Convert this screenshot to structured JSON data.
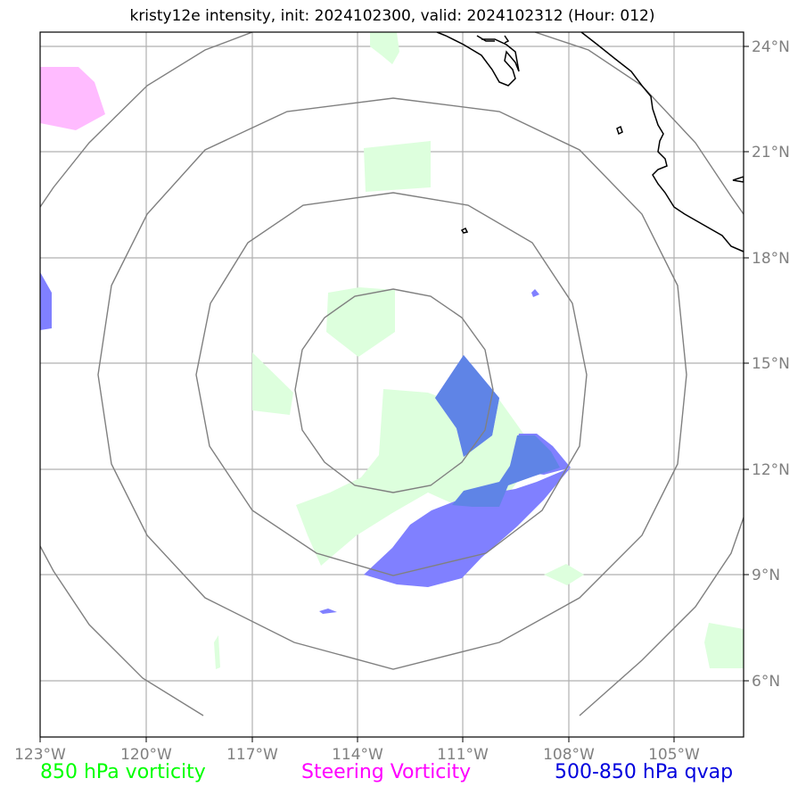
{
  "title": "kristy12e intensity, init: 2024102300, valid: 2024102312 (Hour: 012)",
  "axes": {
    "lon_ticks": [
      "123°W",
      "120°W",
      "117°W",
      "114°W",
      "111°W",
      "108°W",
      "105°W"
    ],
    "lat_ticks": [
      "24°N",
      "21°N",
      "18°N",
      "15°N",
      "12°N",
      "9°N",
      "6°N"
    ],
    "lon_range": [
      -123,
      -103
    ],
    "lat_range": [
      4.5,
      24.5
    ]
  },
  "legend": [
    {
      "label": "850 hPa vorticity",
      "color": "#00ff00"
    },
    {
      "label": "Steering Vorticity",
      "color": "#ff00ff"
    },
    {
      "label": "500-850 hPa qvap",
      "color": "#0000dd"
    }
  ],
  "colors": {
    "vorticity_fill": "#ddffdd",
    "steering_fill": "#ffbbff",
    "qvap_fill": "#8080ff",
    "qvap_overlap": "#5f84e6",
    "range_rings": "#808080",
    "gridlines": "#b0b0b0",
    "coastline": "#000000"
  }
}
